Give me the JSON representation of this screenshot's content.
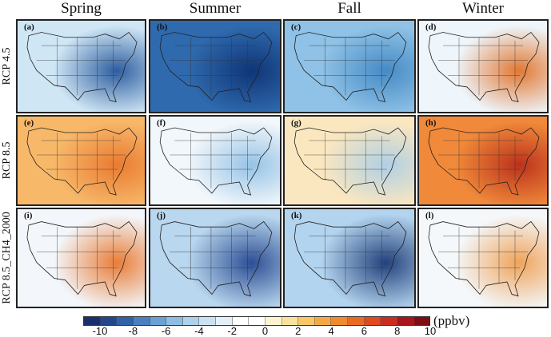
{
  "columns": [
    "Spring",
    "Summer",
    "Fall",
    "Winter"
  ],
  "rows": [
    "RCP 4.5",
    "RCP 8.5",
    "RCP 8.5_CH4_2000"
  ],
  "panels": [
    {
      "label": "(a)",
      "tone": "light-blue",
      "base": "#cfe6f5",
      "hot": "#1c4f96"
    },
    {
      "label": "(b)",
      "tone": "dark-blue",
      "base": "#2f6aae",
      "hot": "#0c2f70"
    },
    {
      "label": "(c)",
      "tone": "medium-blue",
      "base": "#8fc2e6",
      "hot": "#3d84c2"
    },
    {
      "label": "(d)",
      "tone": "white-orange",
      "base": "#eef5fb",
      "hot": "#e06a1c"
    },
    {
      "label": "(e)",
      "tone": "orange",
      "base": "#f7b86a",
      "hot": "#e8742a"
    },
    {
      "label": "(f)",
      "tone": "white-blue",
      "base": "#f2f7fb",
      "hot": "#8bbde3"
    },
    {
      "label": "(g)",
      "tone": "pale-yellow",
      "base": "#fbe7bf",
      "hot": "#a7cde9"
    },
    {
      "label": "(h)",
      "tone": "dark-orange",
      "base": "#f08a3a",
      "hot": "#b52818"
    },
    {
      "label": "(i)",
      "tone": "white-orange",
      "base": "#f3f7fb",
      "hot": "#e86f22"
    },
    {
      "label": "(j)",
      "tone": "blue",
      "base": "#b9d7ef",
      "hot": "#1d3f8a"
    },
    {
      "label": "(k)",
      "tone": "blue",
      "base": "#b3d4ee",
      "hot": "#13306f"
    },
    {
      "label": "(l)",
      "tone": "white-orange",
      "base": "#f4f8fb",
      "hot": "#ef9a48"
    }
  ],
  "colorbar": {
    "unit": "(ppbv)",
    "ticks": [
      "-10",
      "-8",
      "-6",
      "-4",
      "-2",
      "0",
      "2",
      "4",
      "6",
      "8",
      "10"
    ],
    "colors": [
      "#1b2f6e",
      "#23478f",
      "#2f62a8",
      "#4a80c0",
      "#6aa1d4",
      "#8cbde3",
      "#aed1ec",
      "#cbe2f3",
      "#e4f0f8",
      "#ffffff",
      "#ffffff",
      "#fdf3cf",
      "#fbe29a",
      "#f9c865",
      "#f6a942",
      "#f18a2c",
      "#ea6a22",
      "#e04a1e",
      "#cc2c20",
      "#a8151c",
      "#7e0d14"
    ]
  }
}
